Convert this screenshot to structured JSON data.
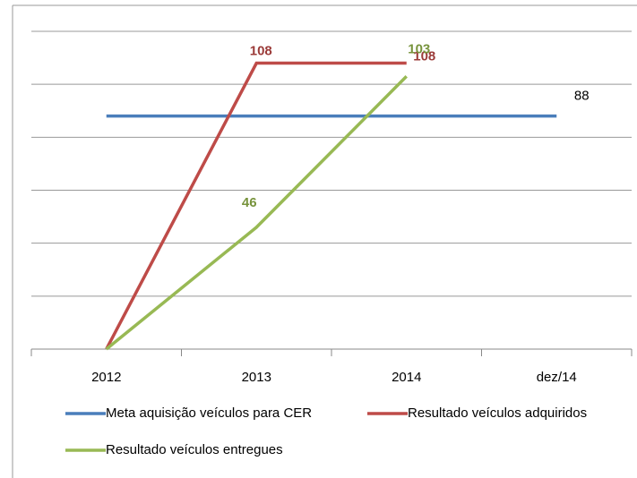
{
  "chart_data": {
    "type": "line",
    "categories": [
      "2012",
      "2013",
      "2014",
      "dez/14"
    ],
    "series": [
      {
        "name": "Meta aquisição veículos para CER",
        "color": "#4a7ebb",
        "values": [
          88,
          88,
          88,
          88
        ],
        "value_labels": [
          null,
          null,
          null,
          "88"
        ]
      },
      {
        "name": "Resultado veículos adquiridos",
        "color": "#be4b48",
        "values": [
          0,
          108,
          108,
          null
        ],
        "value_labels": [
          null,
          "108",
          "108",
          null
        ]
      },
      {
        "name": "Resultado veículos entregues",
        "color": "#98b954",
        "values": [
          0,
          46,
          103,
          null
        ],
        "value_labels": [
          null,
          "46",
          "103",
          null
        ]
      }
    ],
    "ylim": [
      0,
      120
    ],
    "yticks": [
      0,
      20,
      40,
      60,
      80,
      100,
      120
    ],
    "grid": true
  }
}
